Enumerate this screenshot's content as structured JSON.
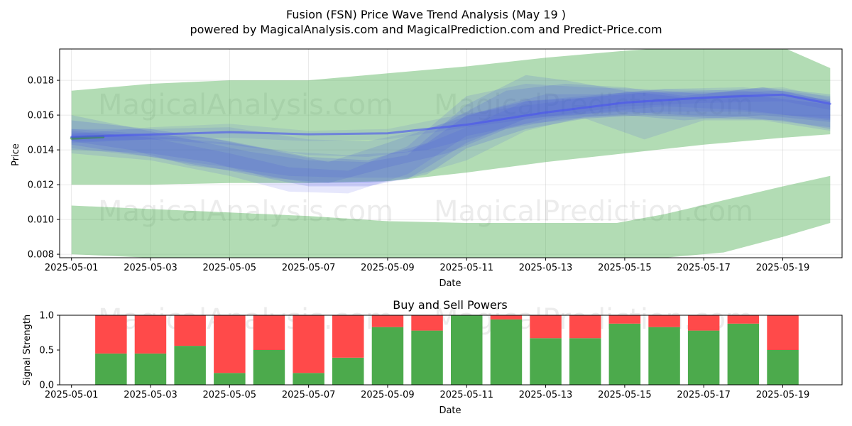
{
  "chart_data": [
    {
      "type": "area",
      "title_line1": "Fusion (FSN) Price Wave Trend Analysis (May 19 )",
      "title_line2": "powered by MagicalAnalysis.com and MagicalPrediction.com and Predict-Price.com",
      "xlabel": "Date",
      "ylabel": "Price",
      "ylim": [
        0.0078,
        0.0198
      ],
      "x_range_days": [
        -0.3,
        19.5
      ],
      "x_ticks": [
        {
          "day": 0,
          "label": "2025-05-01"
        },
        {
          "day": 2,
          "label": "2025-05-03"
        },
        {
          "day": 4,
          "label": "2025-05-05"
        },
        {
          "day": 6,
          "label": "2025-05-07"
        },
        {
          "day": 8,
          "label": "2025-05-09"
        },
        {
          "day": 10,
          "label": "2025-05-11"
        },
        {
          "day": 12,
          "label": "2025-05-13"
        },
        {
          "day": 14,
          "label": "2025-05-15"
        },
        {
          "day": 16,
          "label": "2025-05-17"
        },
        {
          "day": 18,
          "label": "2025-05-19"
        }
      ],
      "y_ticks": [
        {
          "value": 0.008,
          "label": "0.008"
        },
        {
          "value": 0.01,
          "label": "0.010"
        },
        {
          "value": 0.012,
          "label": "0.012"
        },
        {
          "value": 0.014,
          "label": "0.014"
        },
        {
          "value": 0.016,
          "label": "0.016"
        },
        {
          "value": 0.018,
          "label": "0.018"
        }
      ],
      "grid": true,
      "bands": [
        {
          "name": "upper-green-band",
          "color": "#4caf50",
          "opacity": 0.43,
          "points": [
            [
              0,
              0.012,
              0.0174
            ],
            [
              2,
              0.012,
              0.0178
            ],
            [
              4,
              0.0121,
              0.018
            ],
            [
              6,
              0.0121,
              0.018
            ],
            [
              8,
              0.0122,
              0.0184
            ],
            [
              10,
              0.0127,
              0.0188
            ],
            [
              12,
              0.0133,
              0.0193
            ],
            [
              14,
              0.0138,
              0.0197
            ],
            [
              16,
              0.0143,
              0.02
            ],
            [
              18,
              0.0147,
              0.0199
            ],
            [
              19.2,
              0.0149,
              0.0187
            ]
          ]
        },
        {
          "name": "lower-green-band",
          "color": "#4caf50",
          "opacity": 0.43,
          "points": [
            [
              0,
              0.008,
              0.0108
            ],
            [
              2,
              0.0078,
              0.0106
            ],
            [
              4,
              0.0078,
              0.0104
            ],
            [
              6,
              0.0078,
              0.0102
            ],
            [
              8,
              0.0078,
              0.0099
            ],
            [
              10,
              0.0078,
              0.0098
            ],
            [
              12,
              0.0078,
              0.0098
            ],
            [
              13.8,
              0.0078,
              0.0098
            ],
            [
              15,
              0.0078,
              0.0103
            ],
            [
              16.5,
              0.0081,
              0.0111
            ],
            [
              18,
              0.009,
              0.0119
            ],
            [
              19.2,
              0.0098,
              0.0125
            ]
          ]
        },
        {
          "name": "blue-band-1",
          "color": "#3a47e6",
          "opacity": 0.16,
          "points": [
            [
              0,
              0.0143,
              0.0157
            ],
            [
              2,
              0.0136,
              0.0152
            ],
            [
              4,
              0.0128,
              0.0145
            ],
            [
              6,
              0.0119,
              0.0136
            ],
            [
              7.5,
              0.0119,
              0.0134
            ],
            [
              9,
              0.0126,
              0.0144
            ],
            [
              10,
              0.0141,
              0.016
            ],
            [
              11.5,
              0.0152,
              0.0168
            ],
            [
              13,
              0.0158,
              0.017
            ],
            [
              14.5,
              0.016,
              0.0173
            ],
            [
              16.5,
              0.0158,
              0.0173
            ],
            [
              18,
              0.0157,
              0.0174
            ],
            [
              19.2,
              0.0152,
              0.0168
            ]
          ]
        },
        {
          "name": "blue-band-2",
          "color": "#3a47e6",
          "opacity": 0.14,
          "points": [
            [
              0,
              0.014,
              0.0152
            ],
            [
              2,
              0.0138,
              0.0149
            ],
            [
              3.5,
              0.0133,
              0.0147
            ],
            [
              5,
              0.0124,
              0.014
            ],
            [
              6.5,
              0.0121,
              0.0133
            ],
            [
              8,
              0.013,
              0.0144
            ],
            [
              9.5,
              0.0138,
              0.0156
            ],
            [
              11,
              0.0152,
              0.0174
            ],
            [
              12.5,
              0.0158,
              0.0178
            ],
            [
              14,
              0.016,
              0.0176
            ],
            [
              15.5,
              0.0157,
              0.0171
            ],
            [
              17.5,
              0.016,
              0.0176
            ],
            [
              19.2,
              0.0156,
              0.0172
            ]
          ]
        },
        {
          "name": "blue-band-3",
          "color": "#3a47e6",
          "opacity": 0.14,
          "points": [
            [
              0,
              0.0145,
              0.016
            ],
            [
              1.5,
              0.014,
              0.0153
            ],
            [
              3,
              0.0131,
              0.0146
            ],
            [
              4.5,
              0.0127,
              0.0139
            ],
            [
              6,
              0.0121,
              0.0134
            ],
            [
              7.5,
              0.0121,
              0.0133
            ],
            [
              8.5,
              0.0123,
              0.0137
            ],
            [
              10,
              0.0144,
              0.0166
            ],
            [
              11.5,
              0.0158,
              0.0183
            ],
            [
              12.5,
              0.016,
              0.018
            ],
            [
              14,
              0.0162,
              0.0174
            ],
            [
              15.5,
              0.016,
              0.017
            ],
            [
              17,
              0.0159,
              0.0172
            ],
            [
              19.2,
              0.0153,
              0.0166
            ]
          ]
        },
        {
          "name": "blue-band-4",
          "color": "#3a47e6",
          "opacity": 0.13,
          "points": [
            [
              0,
              0.0138,
              0.0151
            ],
            [
              2,
              0.0134,
              0.0147
            ],
            [
              4,
              0.0125,
              0.0138
            ],
            [
              5.5,
              0.0116,
              0.013
            ],
            [
              7,
              0.0115,
              0.0128
            ],
            [
              8.5,
              0.0126,
              0.0142
            ],
            [
              10,
              0.0148,
              0.0171
            ],
            [
              11.5,
              0.0155,
              0.0178
            ],
            [
              13,
              0.0158,
              0.0176
            ],
            [
              14.5,
              0.0146,
              0.0175
            ],
            [
              16,
              0.0157,
              0.0172
            ],
            [
              17.5,
              0.0157,
              0.0176
            ],
            [
              19.2,
              0.0151,
              0.0168
            ]
          ]
        },
        {
          "name": "blue-band-5",
          "color": "#3a47e6",
          "opacity": 0.12,
          "points": [
            [
              0,
              0.0144,
              0.0152
            ],
            [
              2,
              0.0146,
              0.0152
            ],
            [
              4,
              0.0143,
              0.0153
            ],
            [
              6,
              0.0137,
              0.0146
            ],
            [
              7.5,
              0.0136,
              0.0145
            ],
            [
              9,
              0.014,
              0.0152
            ],
            [
              10.5,
              0.0149,
              0.0163
            ],
            [
              12,
              0.0158,
              0.0172
            ],
            [
              13.5,
              0.0162,
              0.0172
            ],
            [
              15,
              0.0165,
              0.0175
            ],
            [
              17,
              0.0163,
              0.0174
            ],
            [
              19.2,
              0.0157,
              0.0169
            ]
          ]
        },
        {
          "name": "blue-band-6",
          "color": "#3a47e6",
          "opacity": 0.12,
          "points": [
            [
              0,
              0.0141,
              0.015
            ],
            [
              2,
              0.0136,
              0.0148
            ],
            [
              4,
              0.013,
              0.0144
            ],
            [
              5.5,
              0.0125,
              0.0139
            ],
            [
              7,
              0.0124,
              0.0137
            ],
            [
              8.5,
              0.0124,
              0.0139
            ],
            [
              10,
              0.0134,
              0.0153
            ],
            [
              11.5,
              0.0151,
              0.0168
            ],
            [
              13,
              0.0159,
              0.0171
            ],
            [
              15,
              0.0162,
              0.0175
            ],
            [
              17,
              0.0162,
              0.0176
            ],
            [
              19.2,
              0.0158,
              0.0171
            ]
          ]
        },
        {
          "name": "blue-band-7",
          "color": "#3a47e6",
          "opacity": 0.1,
          "points": [
            [
              0,
              0.0145,
              0.0149
            ],
            [
              2,
              0.0146,
              0.0153
            ],
            [
              4,
              0.0147,
              0.0155
            ],
            [
              6,
              0.0145,
              0.0151
            ],
            [
              8,
              0.0146,
              0.0152
            ],
            [
              10,
              0.0153,
              0.0161
            ],
            [
              12,
              0.0159,
              0.0167
            ],
            [
              14,
              0.0165,
              0.0173
            ],
            [
              16,
              0.0167,
              0.0174
            ],
            [
              18,
              0.0168,
              0.0176
            ],
            [
              19.2,
              0.0163,
              0.017
            ]
          ]
        }
      ],
      "lines": [
        {
          "name": "green-trend-line",
          "color": "#2e8b2e",
          "width": 4,
          "opacity": 0.55,
          "points": [
            [
              0,
              0.01467
            ],
            [
              0.8,
              0.01475
            ]
          ]
        },
        {
          "name": "blue-mean-line",
          "color": "#4a52f0",
          "width": 3,
          "opacity": 0.6,
          "points": [
            [
              0,
              0.01475
            ],
            [
              2,
              0.01488
            ],
            [
              4,
              0.01502
            ],
            [
              6,
              0.0149
            ],
            [
              8,
              0.01495
            ],
            [
              10,
              0.01545
            ],
            [
              12,
              0.01615
            ],
            [
              14,
              0.01672
            ],
            [
              16,
              0.017
            ],
            [
              18,
              0.01718
            ],
            [
              19.2,
              0.01665
            ]
          ]
        }
      ],
      "watermarks": [
        "MagicalAnalysis.com",
        "MagicalPrediction.com",
        "MagicalAnalysis.com",
        "MagicalPrediction.com"
      ]
    },
    {
      "type": "bar",
      "stacked": true,
      "title": "Buy and Sell Powers",
      "xlabel": "Date",
      "ylabel": "Signal Strength",
      "ylim": [
        0,
        1
      ],
      "x_range_days": [
        -0.3,
        19.5
      ],
      "x_ticks": [
        {
          "day": 0,
          "label": "2025-05-01"
        },
        {
          "day": 2,
          "label": "2025-05-03"
        },
        {
          "day": 4,
          "label": "2025-05-05"
        },
        {
          "day": 6,
          "label": "2025-05-07"
        },
        {
          "day": 8,
          "label": "2025-05-09"
        },
        {
          "day": 10,
          "label": "2025-05-11"
        },
        {
          "day": 12,
          "label": "2025-05-13"
        },
        {
          "day": 14,
          "label": "2025-05-15"
        },
        {
          "day": 16,
          "label": "2025-05-17"
        },
        {
          "day": 18,
          "label": "2025-05-19"
        }
      ],
      "y_ticks": [
        {
          "value": 0.0,
          "label": "0.0"
        },
        {
          "value": 0.5,
          "label": "0.5"
        },
        {
          "value": 1.0,
          "label": "1.0"
        }
      ],
      "categories_day": [
        1,
        2,
        3,
        4,
        5,
        6,
        7,
        8,
        9,
        10,
        11,
        12,
        13,
        14,
        15,
        16,
        17,
        18
      ],
      "series": [
        {
          "name": "Buy",
          "color": "#4caa4c",
          "values": [
            0.45,
            0.45,
            0.56,
            0.17,
            0.5,
            0.17,
            0.39,
            0.83,
            0.78,
            1.0,
            0.94,
            0.67,
            0.67,
            0.88,
            0.83,
            0.78,
            0.88,
            0.5
          ]
        },
        {
          "name": "Sell",
          "color": "#ff4a4a",
          "values": [
            0.55,
            0.55,
            0.44,
            0.83,
            0.5,
            0.83,
            0.61,
            0.17,
            0.22,
            0.0,
            0.06,
            0.33,
            0.33,
            0.12,
            0.17,
            0.22,
            0.12,
            0.5
          ]
        }
      ],
      "watermarks": [
        "MagicalAnalysis.com",
        "MagicalPrediction.com"
      ]
    }
  ]
}
